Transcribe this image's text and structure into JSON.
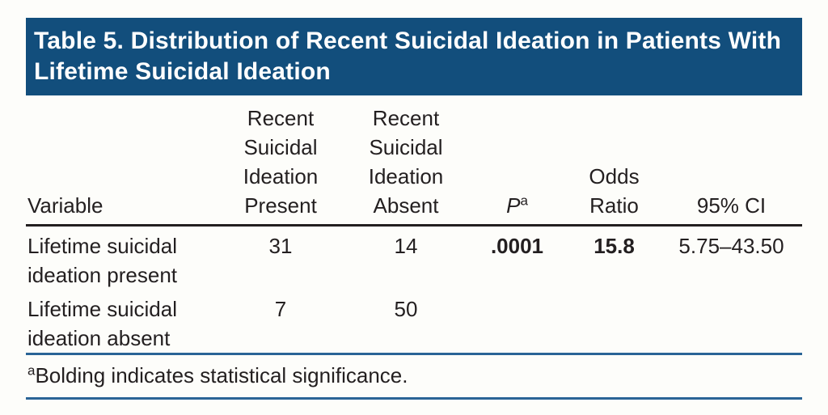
{
  "colors": {
    "title_background": "#124e7c",
    "title_text": "#ffffff",
    "body_text": "#231f20",
    "header_rule": "#231f20",
    "footnote_rule": "#2a6496",
    "page_background": "#fdfdfa"
  },
  "table": {
    "title": "Table 5. Distribution of Recent Suicidal Ideation in Patients With Lifetime Suicidal Ideation",
    "columns": [
      {
        "label": "Variable"
      },
      {
        "label": "Recent Suicidal Ideation Present"
      },
      {
        "label": "Recent Suicidal Ideation Absent"
      },
      {
        "label": "P",
        "superscript": "a",
        "italic": true
      },
      {
        "label": "Odds Ratio"
      },
      {
        "label": "95% CI"
      }
    ],
    "rows": [
      {
        "variable": "Lifetime suicidal ideation present",
        "present": "31",
        "absent": "14",
        "p": ".0001",
        "odds_ratio": "15.8",
        "ci": "5.75–43.50"
      },
      {
        "variable": "Lifetime suicidal ideation absent",
        "present": "7",
        "absent": "50",
        "p": "",
        "odds_ratio": "",
        "ci": ""
      }
    ],
    "footnote": {
      "marker": "a",
      "text": "Bolding indicates statistical significance."
    }
  },
  "chart_data": {
    "type": "table",
    "title": "Table 5. Distribution of Recent Suicidal Ideation in Patients With Lifetime Suicidal Ideation",
    "columns": [
      "Variable",
      "Recent Suicidal Ideation Present",
      "Recent Suicidal Ideation Absent",
      "Pa",
      "Odds Ratio",
      "95% CI"
    ],
    "rows": [
      [
        "Lifetime suicidal ideation present",
        31,
        14,
        ".0001",
        15.8,
        "5.75–43.50"
      ],
      [
        "Lifetime suicidal ideation absent",
        7,
        50,
        "",
        "",
        ""
      ]
    ],
    "footnote": "aBolding indicates statistical significance."
  }
}
